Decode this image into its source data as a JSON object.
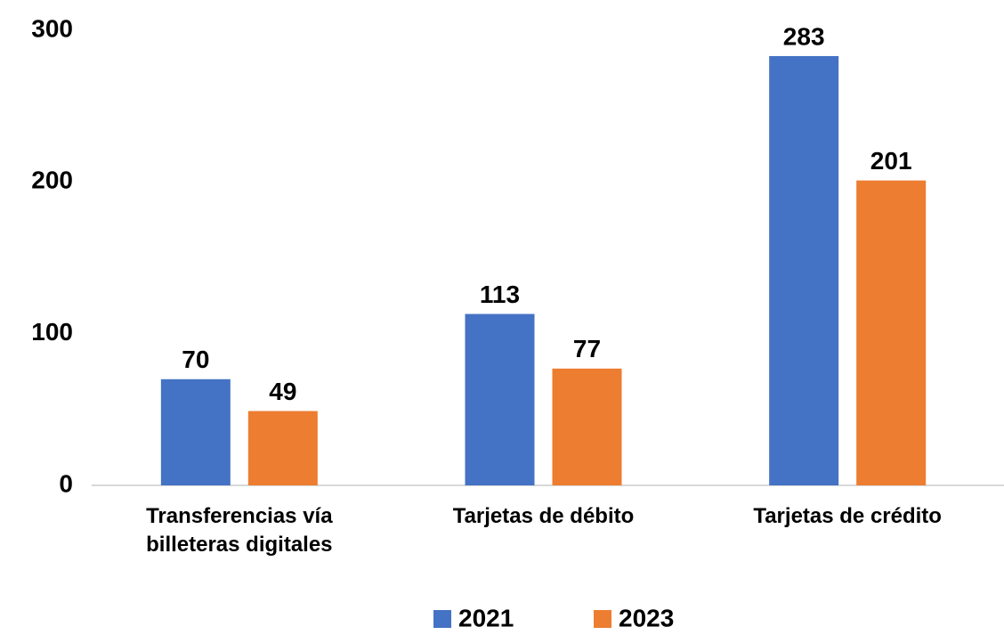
{
  "chart_data": {
    "type": "bar",
    "categories": [
      "Transferencias vía billeteras digitales",
      "Tarjetas de débito",
      "Tarjetas de crédito"
    ],
    "series": [
      {
        "name": "2021",
        "color": "#4472c4",
        "values": [
          70,
          113,
          283
        ]
      },
      {
        "name": "2023",
        "color": "#ed7d31",
        "values": [
          49,
          77,
          201
        ]
      }
    ],
    "ylim": [
      0,
      300
    ],
    "yticks": [
      0,
      100,
      200,
      300
    ],
    "grid": false,
    "legend": "bottom"
  }
}
